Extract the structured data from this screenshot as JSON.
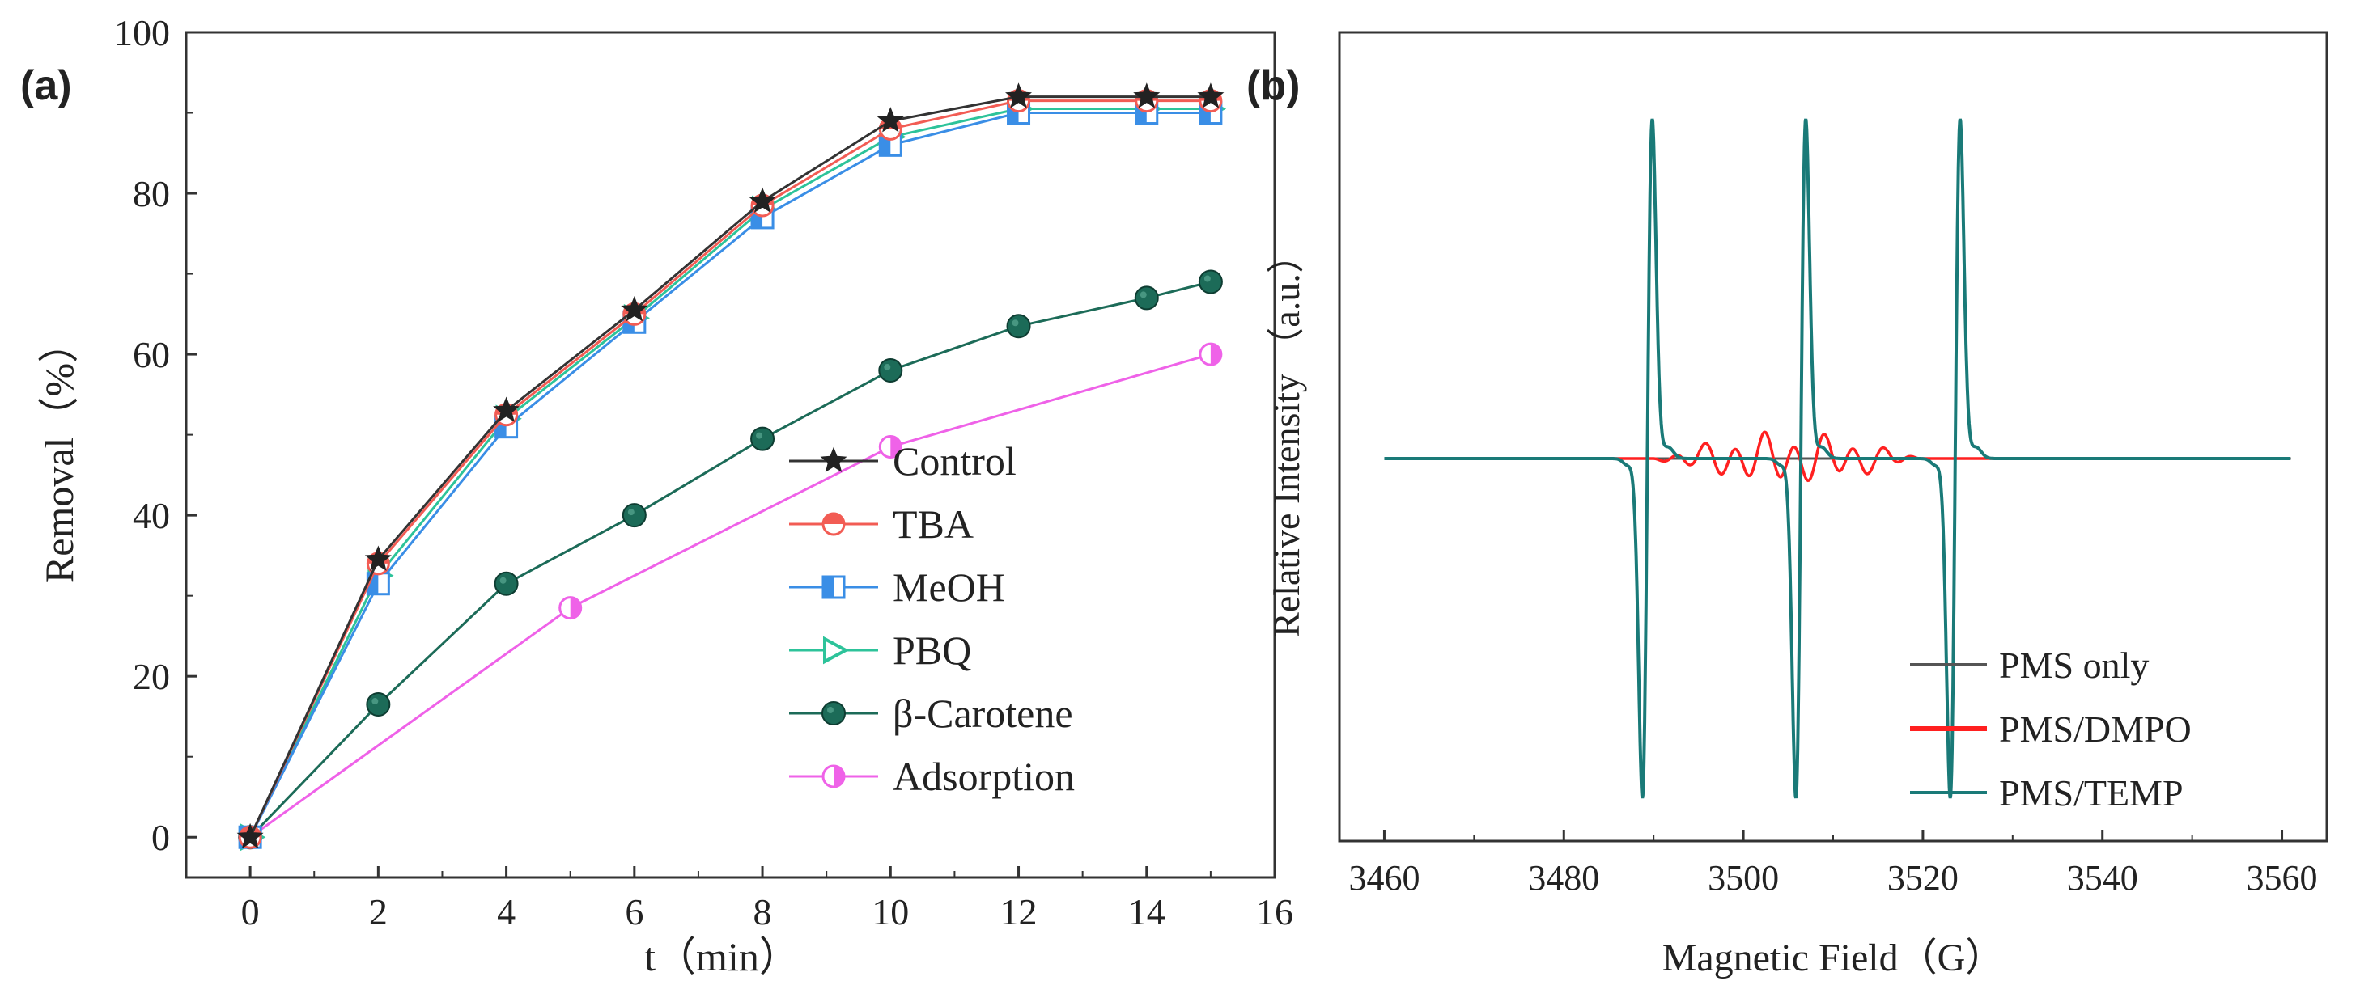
{
  "chart_data": [
    {
      "type": "line",
      "panel_label": "(a)",
      "xlabel": "t（min）",
      "ylabel": "Removal（%）",
      "xlim": [
        -1,
        16
      ],
      "ylim": [
        -5,
        100
      ],
      "xticks": [
        0,
        2,
        4,
        6,
        8,
        10,
        12,
        14,
        16
      ],
      "yticks": [
        0,
        20,
        40,
        60,
        80,
        100
      ],
      "legend_position": "bottom-right",
      "series": [
        {
          "name": "Control",
          "marker": "star",
          "color": "#333333",
          "x": [
            0,
            2,
            4,
            6,
            8,
            10,
            12,
            14,
            15
          ],
          "values": [
            0,
            34.5,
            53,
            65.5,
            79,
            89,
            92,
            92,
            92
          ]
        },
        {
          "name": "TBA",
          "marker": "half-circle",
          "color": "#f25c54",
          "x": [
            0,
            2,
            4,
            6,
            8,
            10,
            12,
            14,
            15
          ],
          "values": [
            0,
            34,
            52.5,
            65,
            78.5,
            88,
            91.5,
            91.5,
            91.5
          ]
        },
        {
          "name": "MeOH",
          "marker": "half-square",
          "color": "#3a8ee6",
          "x": [
            0,
            2,
            4,
            6,
            8,
            10,
            12,
            14,
            15
          ],
          "values": [
            0,
            31.5,
            51,
            64,
            77,
            86,
            90,
            90,
            90
          ]
        },
        {
          "name": "PBQ",
          "marker": "triangle-right",
          "color": "#2dc39a",
          "x": [
            0,
            2,
            4,
            6,
            8,
            10,
            12,
            14,
            15
          ],
          "values": [
            0,
            32.5,
            52,
            64.5,
            78,
            87,
            90.5,
            90.5,
            90.5
          ]
        },
        {
          "name": "β-Carotene",
          "marker": "circle",
          "color": "#1c6b58",
          "x": [
            0,
            2,
            4,
            6,
            8,
            10,
            12,
            14,
            15
          ],
          "values": [
            0,
            16.5,
            31.5,
            40,
            49.5,
            58,
            63.5,
            67,
            69
          ]
        },
        {
          "name": "Adsorption",
          "marker": "half-circle-vertical",
          "color": "#ef62e8",
          "x": [
            0,
            5,
            10,
            15
          ],
          "values": [
            0,
            28.5,
            48.5,
            60
          ]
        }
      ]
    },
    {
      "type": "line",
      "panel_label": "(b)",
      "xlabel": "Magnetic Field（G）",
      "ylabel": "Relative Intensity （a.u.）",
      "xlim": [
        3455,
        3565
      ],
      "xticks": [
        3460,
        3480,
        3500,
        3520,
        3540,
        3560
      ],
      "legend_position": "bottom-right",
      "series": [
        {
          "name": "PMS only",
          "color": "#555555",
          "description_level": "flat baseline"
        },
        {
          "name": "PMS/DMPO",
          "color": "#ff2020",
          "description_level": "small oscillations 3490–3520 G"
        },
        {
          "name": "PMS/TEMP",
          "color": "#1a7a78",
          "peak_centers_G": [
            3489.3,
            3506.4,
            3523.6
          ],
          "relative_amplitude": 1.0
        }
      ]
    }
  ]
}
